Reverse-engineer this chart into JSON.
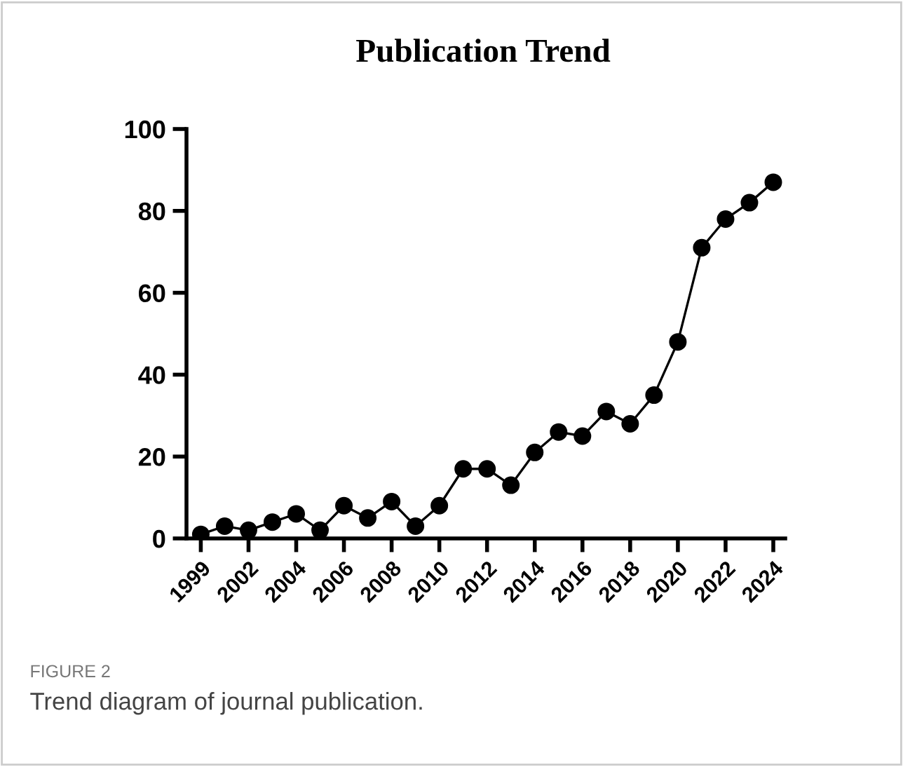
{
  "chart_data": {
    "type": "line",
    "title": "Publication Trend",
    "categories": [
      "1999",
      null,
      "2002",
      null,
      "2004",
      null,
      "2006",
      null,
      "2008",
      null,
      "2010",
      null,
      "2012",
      null,
      "2014",
      null,
      "2016",
      null,
      "2018",
      null,
      "2020",
      null,
      "2022",
      null,
      "2024"
    ],
    "series": [
      {
        "color": "#000000",
        "values": [
          1,
          3,
          2,
          4,
          6,
          2,
          8,
          5,
          9,
          3,
          8,
          17,
          17,
          13,
          21,
          26,
          25,
          31,
          28,
          35,
          48,
          71,
          78,
          82,
          87
        ]
      }
    ],
    "ylim": [
      0,
      100
    ],
    "yticks": [
      0,
      20,
      40,
      60,
      80,
      100
    ],
    "grid": false,
    "marker": "circle",
    "line_style": "solid",
    "annotations": [
      "FIGURE 2",
      "Trend diagram of journal publication."
    ]
  }
}
